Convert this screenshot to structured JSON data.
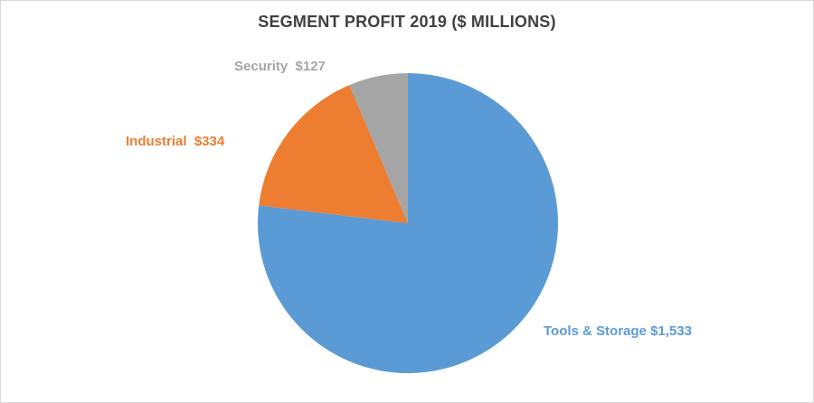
{
  "title": "SEGMENT PROFIT 2019 ($ MILLIONS)",
  "chart_data": {
    "type": "pie",
    "title": "SEGMENT PROFIT 2019 ($ MILLIONS)",
    "categories": [
      "Tools & Storage",
      "Industrial",
      "Security"
    ],
    "values": [
      1533,
      334,
      127
    ],
    "value_labels": [
      "$1,533",
      "$334",
      "$127"
    ],
    "colors": [
      "#5b9bd5",
      "#ed7d31",
      "#a5a5a5"
    ],
    "total": 1994,
    "start_angle_deg": 0,
    "direction": "clockwise",
    "legend_position": "none",
    "labels": {
      "security": "Security  $127",
      "industrial": "Industrial  $334",
      "tools": "Tools & Storage $1,533"
    }
  }
}
